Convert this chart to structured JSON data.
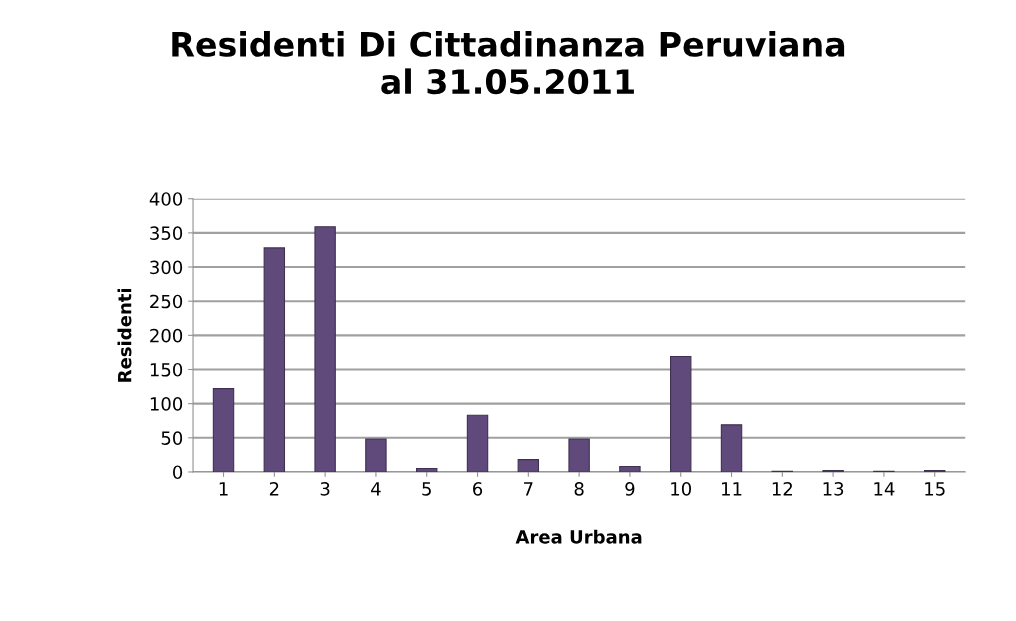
{
  "chart_data": {
    "type": "bar",
    "title": "Residenti Di Cittadinanza Peruviana\nal 31.05.2011",
    "xlabel": "Area Urbana",
    "ylabel": "Residenti",
    "categories": [
      "1",
      "2",
      "3",
      "4",
      "5",
      "6",
      "7",
      "8",
      "9",
      "10",
      "11",
      "12",
      "13",
      "14",
      "15"
    ],
    "values": [
      122,
      328,
      359,
      48,
      5,
      83,
      18,
      48,
      8,
      169,
      69,
      1,
      2,
      1,
      2
    ],
    "color": "#604a7b",
    "ylim": [
      0,
      400
    ],
    "yticks": [
      0,
      50,
      100,
      150,
      200,
      250,
      300,
      350,
      400
    ],
    "grid": "y"
  }
}
